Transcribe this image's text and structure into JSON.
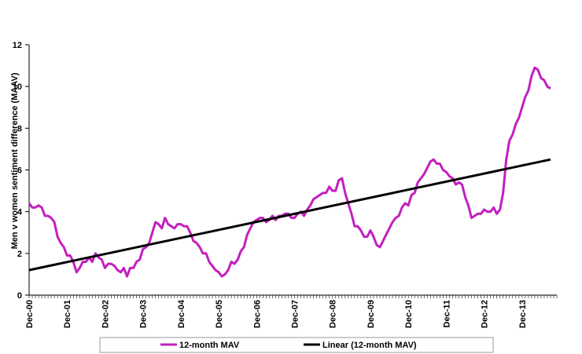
{
  "chart_data": {
    "type": "line",
    "title": "",
    "xlabel": "",
    "ylabel": "Men v women sentiment difference (MAAV)",
    "ylim": [
      0,
      12
    ],
    "yticks": [
      0,
      2,
      4,
      6,
      8,
      10,
      12
    ],
    "xlim": [
      2000.917,
      2014.833
    ],
    "xticks": [
      {
        "label": "Dec-00",
        "x": 2000.917
      },
      {
        "label": "Dec-01",
        "x": 2001.917
      },
      {
        "label": "Dec-02",
        "x": 2002.917
      },
      {
        "label": "Dec-03",
        "x": 2003.917
      },
      {
        "label": "Dec-04",
        "x": 2004.917
      },
      {
        "label": "Dec-05",
        "x": 2005.917
      },
      {
        "label": "Dec-06",
        "x": 2006.917
      },
      {
        "label": "Dec-07",
        "x": 2007.917
      },
      {
        "label": "Dec-08",
        "x": 2008.917
      },
      {
        "label": "Dec-09",
        "x": 2009.917
      },
      {
        "label": "Dec-10",
        "x": 2010.917
      },
      {
        "label": "Dec-11",
        "x": 2011.917
      },
      {
        "label": "Dec-12",
        "x": 2012.917
      },
      {
        "label": "Dec-13",
        "x": 2013.917
      }
    ],
    "grid": false,
    "legend_position": "bottom",
    "series": [
      {
        "name": "12-month MAV",
        "color": "#c31fbf",
        "points": [
          [
            2000.917,
            4.4
          ],
          [
            2001.0,
            4.2
          ],
          [
            2001.083,
            4.2
          ],
          [
            2001.167,
            4.3
          ],
          [
            2001.25,
            4.2
          ],
          [
            2001.333,
            3.8
          ],
          [
            2001.417,
            3.8
          ],
          [
            2001.5,
            3.7
          ],
          [
            2001.583,
            3.5
          ],
          [
            2001.667,
            2.8
          ],
          [
            2001.75,
            2.5
          ],
          [
            2001.833,
            2.3
          ],
          [
            2001.917,
            1.9
          ],
          [
            2002.0,
            1.9
          ],
          [
            2002.083,
            1.6
          ],
          [
            2002.167,
            1.1
          ],
          [
            2002.25,
            1.3
          ],
          [
            2002.333,
            1.6
          ],
          [
            2002.417,
            1.6
          ],
          [
            2002.5,
            1.8
          ],
          [
            2002.583,
            1.6
          ],
          [
            2002.667,
            2.0
          ],
          [
            2002.75,
            1.8
          ],
          [
            2002.833,
            1.7
          ],
          [
            2002.917,
            1.3
          ],
          [
            2003.0,
            1.5
          ],
          [
            2003.083,
            1.5
          ],
          [
            2003.167,
            1.4
          ],
          [
            2003.25,
            1.2
          ],
          [
            2003.333,
            1.1
          ],
          [
            2003.417,
            1.3
          ],
          [
            2003.5,
            0.9
          ],
          [
            2003.583,
            1.3
          ],
          [
            2003.667,
            1.3
          ],
          [
            2003.75,
            1.6
          ],
          [
            2003.833,
            1.7
          ],
          [
            2003.917,
            2.2
          ],
          [
            2004.0,
            2.3
          ],
          [
            2004.083,
            2.5
          ],
          [
            2004.167,
            3.0
          ],
          [
            2004.25,
            3.5
          ],
          [
            2004.333,
            3.4
          ],
          [
            2004.417,
            3.2
          ],
          [
            2004.5,
            3.7
          ],
          [
            2004.583,
            3.4
          ],
          [
            2004.667,
            3.3
          ],
          [
            2004.75,
            3.2
          ],
          [
            2004.833,
            3.4
          ],
          [
            2004.917,
            3.4
          ],
          [
            2005.0,
            3.3
          ],
          [
            2005.083,
            3.3
          ],
          [
            2005.167,
            3.0
          ],
          [
            2005.25,
            2.6
          ],
          [
            2005.333,
            2.5
          ],
          [
            2005.417,
            2.3
          ],
          [
            2005.5,
            2.0
          ],
          [
            2005.583,
            2.0
          ],
          [
            2005.667,
            1.6
          ],
          [
            2005.75,
            1.4
          ],
          [
            2005.833,
            1.2
          ],
          [
            2005.917,
            1.1
          ],
          [
            2006.0,
            0.9
          ],
          [
            2006.083,
            1.0
          ],
          [
            2006.167,
            1.2
          ],
          [
            2006.25,
            1.6
          ],
          [
            2006.333,
            1.5
          ],
          [
            2006.417,
            1.7
          ],
          [
            2006.5,
            2.1
          ],
          [
            2006.583,
            2.3
          ],
          [
            2006.667,
            2.9
          ],
          [
            2006.75,
            3.2
          ],
          [
            2006.833,
            3.5
          ],
          [
            2006.917,
            3.6
          ],
          [
            2007.0,
            3.7
          ],
          [
            2007.083,
            3.7
          ],
          [
            2007.167,
            3.5
          ],
          [
            2007.25,
            3.6
          ],
          [
            2007.333,
            3.8
          ],
          [
            2007.417,
            3.6
          ],
          [
            2007.5,
            3.8
          ],
          [
            2007.583,
            3.8
          ],
          [
            2007.667,
            3.9
          ],
          [
            2007.75,
            3.9
          ],
          [
            2007.833,
            3.7
          ],
          [
            2007.917,
            3.7
          ],
          [
            2008.0,
            3.9
          ],
          [
            2008.083,
            4.0
          ],
          [
            2008.167,
            3.8
          ],
          [
            2008.25,
            4.1
          ],
          [
            2008.333,
            4.3
          ],
          [
            2008.417,
            4.6
          ],
          [
            2008.5,
            4.7
          ],
          [
            2008.583,
            4.8
          ],
          [
            2008.667,
            4.9
          ],
          [
            2008.75,
            4.9
          ],
          [
            2008.833,
            5.2
          ],
          [
            2008.917,
            5.0
          ],
          [
            2009.0,
            5.0
          ],
          [
            2009.083,
            5.5
          ],
          [
            2009.167,
            5.6
          ],
          [
            2009.25,
            4.9
          ],
          [
            2009.333,
            4.4
          ],
          [
            2009.417,
            3.9
          ],
          [
            2009.5,
            3.3
          ],
          [
            2009.583,
            3.3
          ],
          [
            2009.667,
            3.1
          ],
          [
            2009.75,
            2.8
          ],
          [
            2009.833,
            2.8
          ],
          [
            2009.917,
            3.1
          ],
          [
            2010.0,
            2.8
          ],
          [
            2010.083,
            2.4
          ],
          [
            2010.167,
            2.3
          ],
          [
            2010.25,
            2.6
          ],
          [
            2010.333,
            2.9
          ],
          [
            2010.417,
            3.2
          ],
          [
            2010.5,
            3.5
          ],
          [
            2010.583,
            3.7
          ],
          [
            2010.667,
            3.8
          ],
          [
            2010.75,
            4.2
          ],
          [
            2010.833,
            4.4
          ],
          [
            2010.917,
            4.3
          ],
          [
            2011.0,
            4.8
          ],
          [
            2011.083,
            4.9
          ],
          [
            2011.167,
            5.4
          ],
          [
            2011.25,
            5.6
          ],
          [
            2011.333,
            5.8
          ],
          [
            2011.417,
            6.1
          ],
          [
            2011.5,
            6.4
          ],
          [
            2011.583,
            6.5
          ],
          [
            2011.667,
            6.3
          ],
          [
            2011.75,
            6.3
          ],
          [
            2011.833,
            6.0
          ],
          [
            2011.917,
            5.9
          ],
          [
            2012.0,
            5.7
          ],
          [
            2012.083,
            5.6
          ],
          [
            2012.167,
            5.3
          ],
          [
            2012.25,
            5.4
          ],
          [
            2012.333,
            5.3
          ],
          [
            2012.417,
            4.7
          ],
          [
            2012.5,
            4.3
          ],
          [
            2012.583,
            3.7
          ],
          [
            2012.667,
            3.8
          ],
          [
            2012.75,
            3.9
          ],
          [
            2012.833,
            3.9
          ],
          [
            2012.917,
            4.1
          ],
          [
            2013.0,
            4.0
          ],
          [
            2013.083,
            4.0
          ],
          [
            2013.167,
            4.2
          ],
          [
            2013.25,
            3.9
          ],
          [
            2013.333,
            4.1
          ],
          [
            2013.417,
            4.9
          ],
          [
            2013.5,
            6.5
          ],
          [
            2013.583,
            7.4
          ],
          [
            2013.667,
            7.7
          ],
          [
            2013.75,
            8.2
          ],
          [
            2013.833,
            8.5
          ],
          [
            2013.917,
            9.0
          ],
          [
            2014.0,
            9.5
          ],
          [
            2014.083,
            9.8
          ],
          [
            2014.167,
            10.5
          ],
          [
            2014.25,
            10.9
          ],
          [
            2014.333,
            10.8
          ],
          [
            2014.417,
            10.4
          ],
          [
            2014.5,
            10.3
          ],
          [
            2014.583,
            10.0
          ],
          [
            2014.667,
            9.9
          ]
        ]
      },
      {
        "name": "Linear (12-month MAV)",
        "color": "#000000",
        "points": [
          [
            2000.917,
            1.2
          ],
          [
            2014.667,
            6.5
          ]
        ]
      }
    ]
  }
}
